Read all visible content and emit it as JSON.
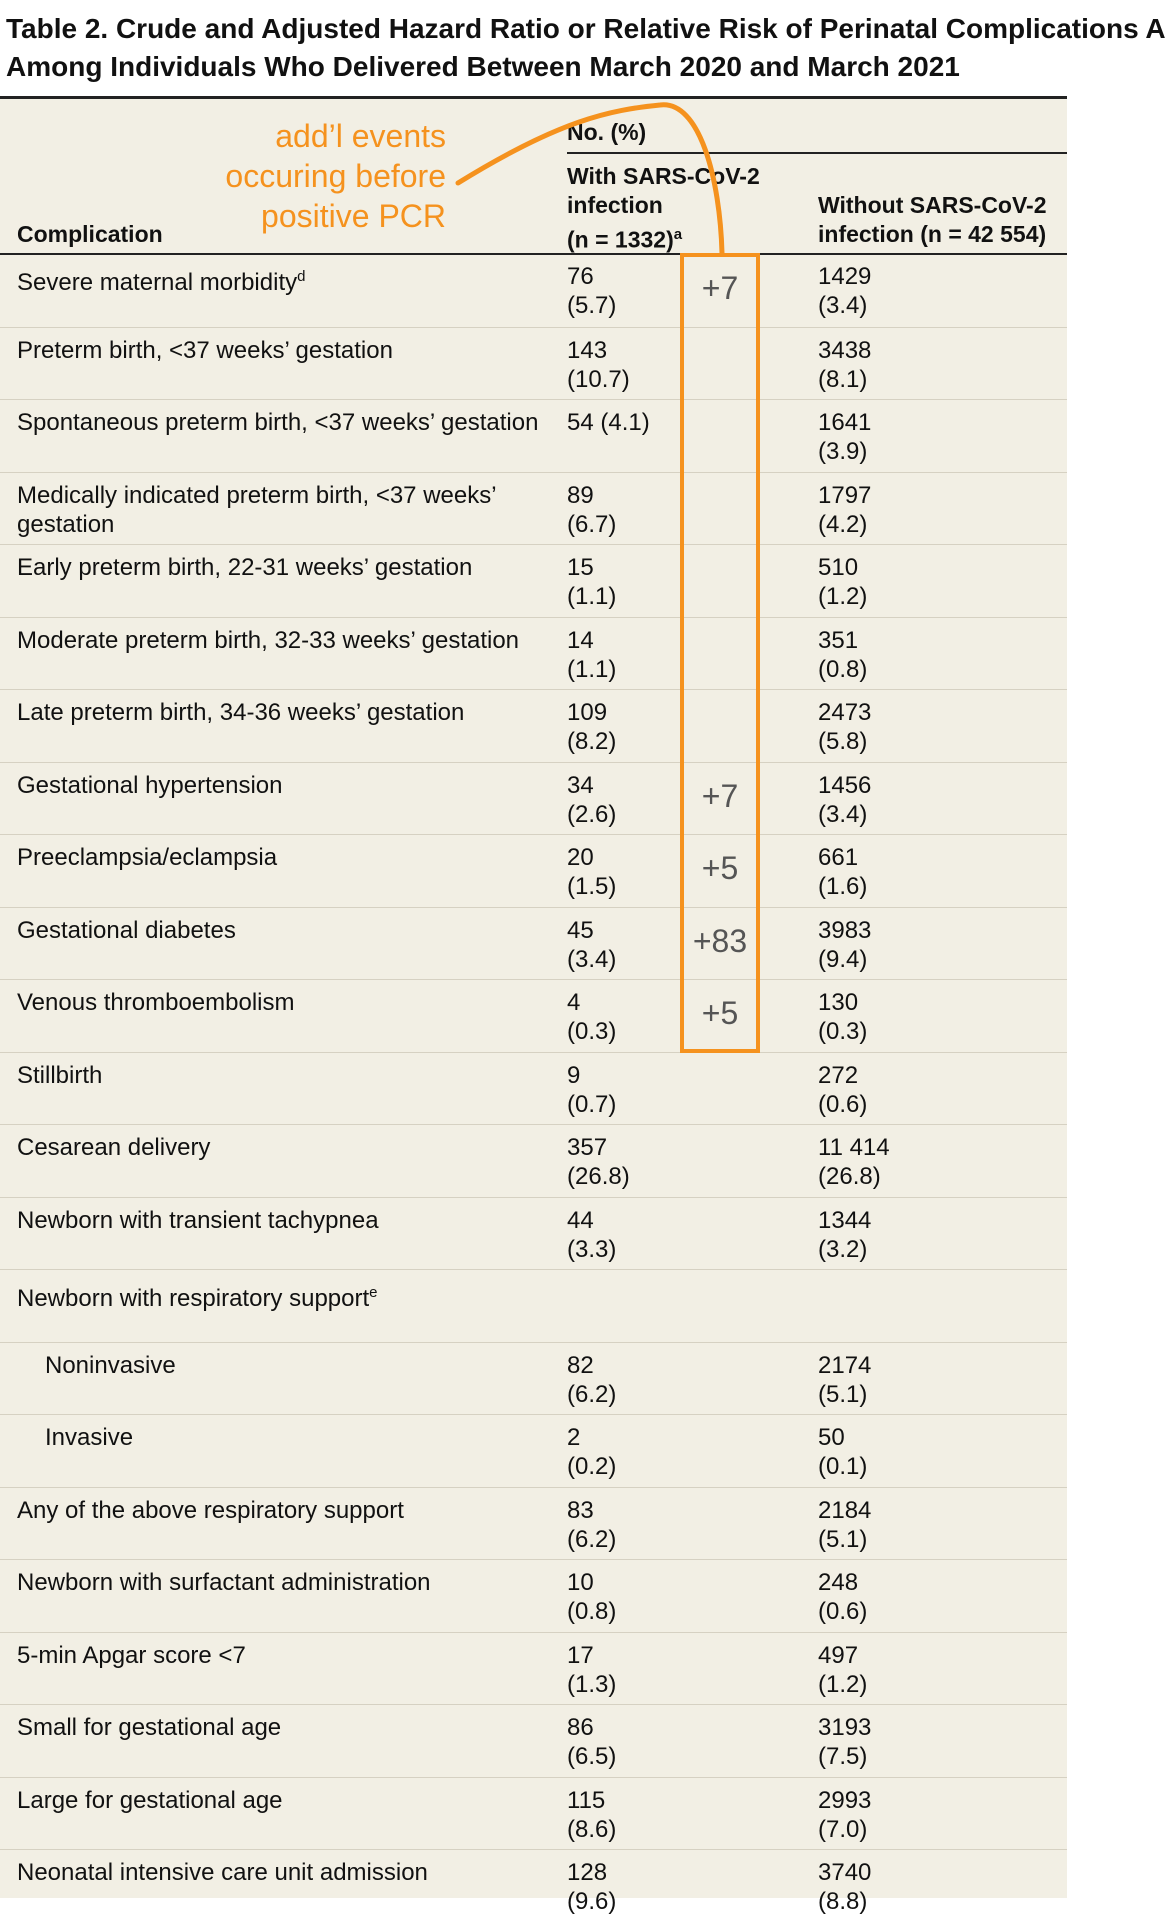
{
  "title": {
    "line1": "Table 2. Crude and Adjusted Hazard Ratio or Relative Risk of Perinatal Complications A",
    "line2": "Among Individuals Who Delivered Between March 2020 and March 2021"
  },
  "header": {
    "no_pct": "No. (%)",
    "complication": "Complication",
    "with_line1": "With SARS-CoV-2",
    "with_line2": "infection",
    "with_line3": "(n = 1332)",
    "with_sup": "a",
    "without_line1": "Without SARS-CoV-2",
    "without_line2": "infection (n = 42 554)"
  },
  "rows": [
    {
      "label": "Severe maternal morbidity",
      "sup": "d",
      "with1": "76",
      "with2": "(5.7)",
      "without1": "1429",
      "without2": "(3.4)"
    },
    {
      "label": "Preterm birth, <37 weeks’ gestation",
      "with1": "143",
      "with2": "(10.7)",
      "without1": "3438",
      "without2": "(8.1)"
    },
    {
      "label": "Spontaneous preterm birth, <37 weeks’ gestation",
      "with1": "54 (4.1)",
      "with2": "",
      "without1": "1641",
      "without2": "(3.9)"
    },
    {
      "label": "Medically indicated preterm birth, <37 weeks’ gestation",
      "with1": "89",
      "with2": "(6.7)",
      "without1": "1797",
      "without2": "(4.2)"
    },
    {
      "label": "Early preterm birth, 22-31 weeks’ gestation",
      "with1": "15",
      "with2": "(1.1)",
      "without1": "510",
      "without2": "(1.2)"
    },
    {
      "label": "Moderate preterm birth, 32-33 weeks’ gestation",
      "with1": "14",
      "with2": "(1.1)",
      "without1": "351",
      "without2": "(0.8)"
    },
    {
      "label": "Late preterm birth, 34-36 weeks’ gestation",
      "with1": "109",
      "with2": "(8.2)",
      "without1": "2473",
      "without2": "(5.8)"
    },
    {
      "label": "Gestational hypertension",
      "with1": "34",
      "with2": "(2.6)",
      "without1": "1456",
      "without2": "(3.4)"
    },
    {
      "label": "Preeclampsia/eclampsia",
      "with1": "20",
      "with2": "(1.5)",
      "without1": "661",
      "without2": "(1.6)"
    },
    {
      "label": "Gestational diabetes",
      "with1": "45",
      "with2": "(3.4)",
      "without1": "3983",
      "without2": "(9.4)"
    },
    {
      "label": "Venous thromboembolism",
      "with1": "4",
      "with2": "(0.3)",
      "without1": "130",
      "without2": "(0.3)"
    },
    {
      "label": "Stillbirth",
      "with1": "9",
      "with2": "(0.7)",
      "without1": "272",
      "without2": "(0.6)"
    },
    {
      "label": "Cesarean delivery",
      "with1": "357",
      "with2": "(26.8)",
      "without1": "11 414",
      "without2": "(26.8)"
    },
    {
      "label": "Newborn with transient tachypnea",
      "with1": "44",
      "with2": "(3.3)",
      "without1": "1344",
      "without2": "(3.2)"
    },
    {
      "label": "Newborn with respiratory support",
      "sup": "e",
      "with1": "",
      "with2": "",
      "without1": "",
      "without2": ""
    },
    {
      "label": "Noninvasive",
      "indent": true,
      "with1": "82",
      "with2": "(6.2)",
      "without1": "2174",
      "without2": "(5.1)"
    },
    {
      "label": "Invasive",
      "indent": true,
      "with1": "2",
      "with2": "(0.2)",
      "without1": "50",
      "without2": "(0.1)"
    },
    {
      "label": "Any of the above respiratory support",
      "with1": "83",
      "with2": "(6.2)",
      "without1": "2184",
      "without2": "(5.1)"
    },
    {
      "label": "Newborn with surfactant administration",
      "with1": "10",
      "with2": "(0.8)",
      "without1": "248",
      "without2": "(0.6)"
    },
    {
      "label": "5-min Apgar score <7",
      "with1": "17",
      "with2": "(1.3)",
      "without1": "497",
      "without2": "(1.2)"
    },
    {
      "label": "Small for gestational age",
      "with1": "86",
      "with2": "(6.5)",
      "without1": "3193",
      "without2": "(7.5)"
    },
    {
      "label": "Large for gestational age",
      "with1": "115",
      "with2": "(8.6)",
      "without1": "2993",
      "without2": "(7.0)"
    },
    {
      "label": "Neonatal intensive care unit admission",
      "with1": "128",
      "with2": "(9.6)",
      "without1": "3740",
      "without2": "(8.8)"
    }
  ],
  "annotation": {
    "text_line1": "add’l events",
    "text_line2": "occuring before",
    "text_line3": "positive PCR",
    "color": "#f5921e",
    "deltas": [
      {
        "row": 0,
        "text": "+7"
      },
      {
        "row": 7,
        "text": "+7"
      },
      {
        "row": 8,
        "text": "+5"
      },
      {
        "row": 9,
        "text": "+83"
      },
      {
        "row": 10,
        "text": "+5"
      }
    ]
  }
}
